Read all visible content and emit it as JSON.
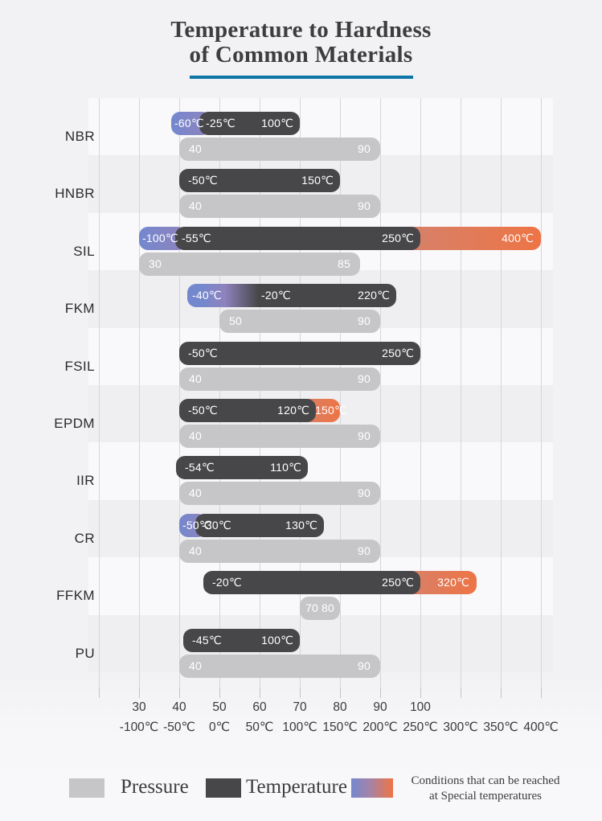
{
  "title": {
    "line1": "Temperature to Hardness",
    "line2": "of Common Materials"
  },
  "legend": {
    "pressure_label": "Pressure",
    "temperature_label": "Temperature",
    "special_line1": "Conditions that can be reached",
    "special_line2": "at Special temperatures"
  },
  "colors": {
    "temperature_bar": "#474749",
    "pressure_bar": "#c6c6c9",
    "special_low_start": "#7488ce",
    "special_low_end": "#8f83bd",
    "special_high_start": "#d4826d",
    "special_high_end": "#ee7445",
    "title_underline": "#0d76a7"
  },
  "chart_data": {
    "type": "bar",
    "orientation": "horizontal",
    "unit": "℃",
    "temperature_axis": {
      "ticks": [
        -100,
        -50,
        0,
        50,
        100,
        150,
        200,
        250,
        300,
        350,
        400
      ],
      "unit": "℃"
    },
    "hardness_axis": {
      "ticks": [
        30,
        40,
        50,
        60,
        70,
        80,
        90,
        100
      ]
    },
    "materials": [
      {
        "name": "NBR",
        "temperature": {
          "special_low": {
            "from": -60,
            "to": -25
          },
          "normal": {
            "from": -25,
            "to": 100
          }
        },
        "pressure": {
          "from": 40,
          "to": 90
        }
      },
      {
        "name": "HNBR",
        "temperature": {
          "normal": {
            "from": -50,
            "to": 150
          }
        },
        "pressure": {
          "from": 40,
          "to": 90
        }
      },
      {
        "name": "SIL",
        "temperature": {
          "special_low": {
            "from": -100,
            "to": -55
          },
          "normal": {
            "from": -55,
            "to": 250
          },
          "special_high": {
            "from": 250,
            "to": 400
          }
        },
        "pressure": {
          "from": 30,
          "to": 85
        }
      },
      {
        "name": "FKM",
        "temperature": {
          "special_low": {
            "from": -40,
            "to": -20,
            "style": "blend"
          },
          "normal": {
            "from": -20,
            "to": 220
          }
        },
        "pressure": {
          "from": 50,
          "to": 90
        }
      },
      {
        "name": "FSIL",
        "temperature": {
          "normal": {
            "from": -50,
            "to": 250
          }
        },
        "pressure": {
          "from": 40,
          "to": 90
        }
      },
      {
        "name": "EPDM",
        "temperature": {
          "normal": {
            "from": -50,
            "to": 120
          },
          "special_high": {
            "from": 120,
            "to": 150
          }
        },
        "pressure": {
          "from": 40,
          "to": 90
        }
      },
      {
        "name": "IIR",
        "temperature": {
          "normal": {
            "from": -54,
            "to": 110
          }
        },
        "pressure": {
          "from": 40,
          "to": 90
        }
      },
      {
        "name": "CR",
        "temperature": {
          "special_low": {
            "from": -50,
            "to": -30
          },
          "normal": {
            "from": -30,
            "to": 130
          }
        },
        "pressure": {
          "from": 40,
          "to": 90
        }
      },
      {
        "name": "FFKM",
        "temperature": {
          "normal": {
            "from": -20,
            "to": 250
          },
          "special_high": {
            "from": 250,
            "to": 320
          }
        },
        "pressure": {
          "from": 70,
          "to": 80
        }
      },
      {
        "name": "PU",
        "temperature": {
          "normal": {
            "from": -45,
            "to": 100
          }
        },
        "pressure": {
          "from": 40,
          "to": 90
        }
      }
    ]
  }
}
